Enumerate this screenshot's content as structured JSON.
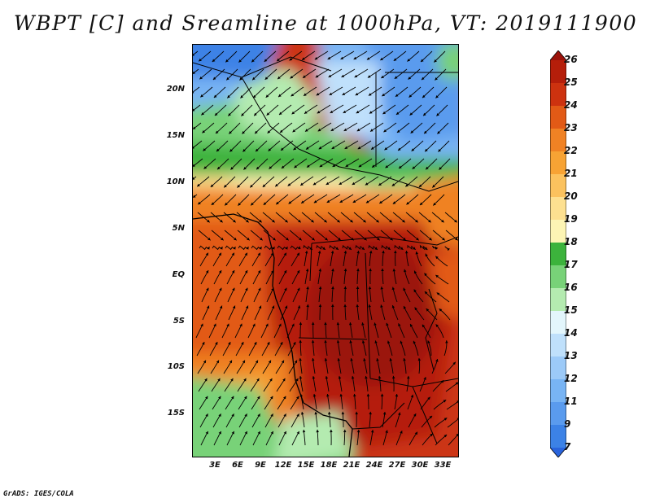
{
  "title": "WBPT [C] and Sreamline at 1000hPa, VT: 2019111900",
  "credit": "GrADS: IGES/COLA",
  "lat_labels": [
    "20N",
    "15N",
    "10N",
    "5N",
    "EQ",
    "5S",
    "10S",
    "15S"
  ],
  "lon_labels": [
    "3E",
    "6E",
    "9E",
    "12E",
    "15E",
    "18E",
    "21E",
    "24E",
    "27E",
    "30E",
    "33E"
  ],
  "colorbar": {
    "labels": [
      "7",
      "9",
      "11",
      "12",
      "13",
      "14",
      "15",
      "16",
      "17",
      "18",
      "19",
      "20",
      "21",
      "22",
      "23",
      "24",
      "25",
      "26"
    ],
    "colors": [
      "#2a64dc",
      "#3c82e6",
      "#5a9bee",
      "#78b4f4",
      "#9ccaf8",
      "#bfe0fb",
      "#e3f6fc",
      "#b4ebb0",
      "#78d278",
      "#3cb33c",
      "#fdf5b4",
      "#fde090",
      "#fbc25e",
      "#f7a334",
      "#f08224",
      "#e25a16",
      "#cd320f",
      "#b51e0a",
      "#9b120a"
    ]
  }
}
